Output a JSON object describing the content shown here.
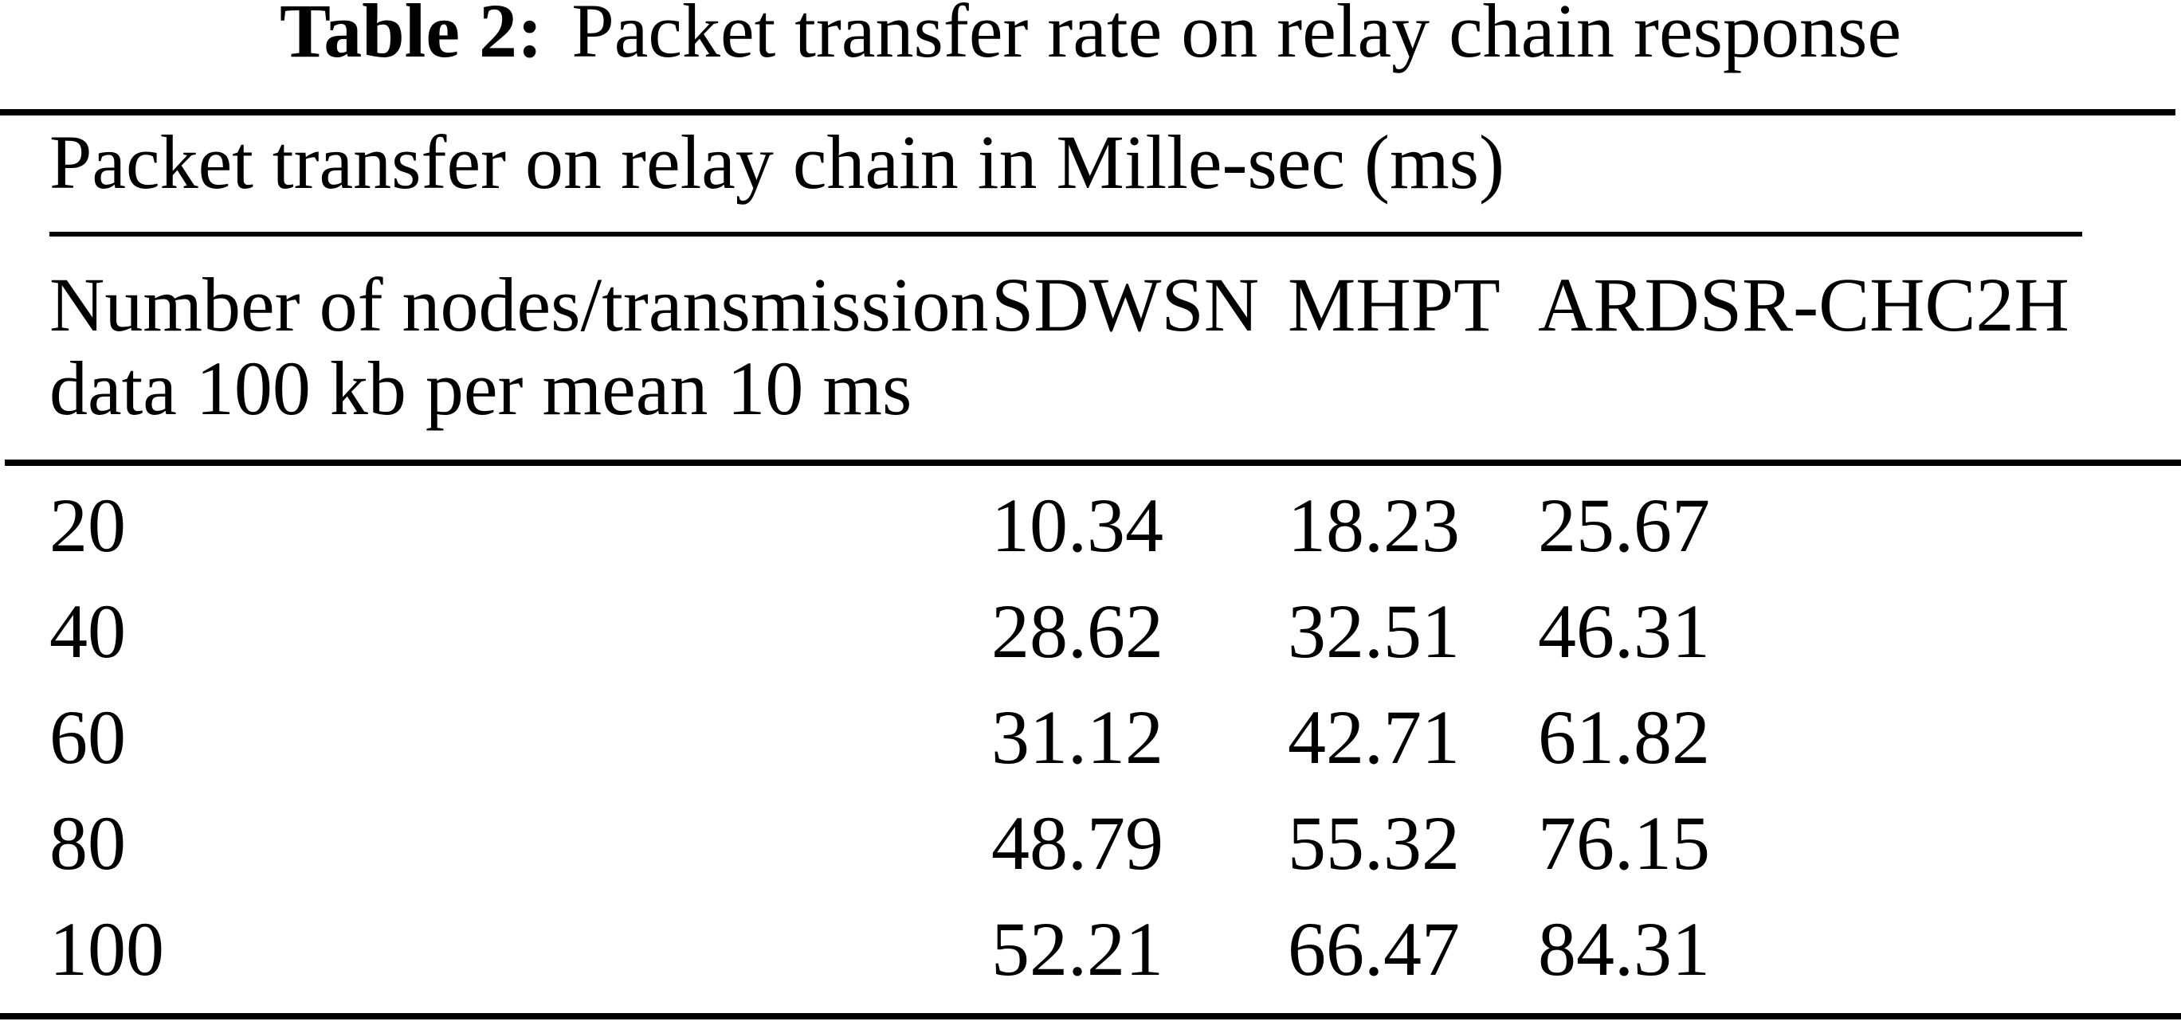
{
  "caption": {
    "number": "Table 2:",
    "text": "Packet transfer rate on relay chain response"
  },
  "table": {
    "subtitle": "Packet transfer on relay chain in Mille-sec (ms)",
    "columns": {
      "nodes_line1": "Number of nodes/transmission",
      "nodes_line2": "data 100 kb per mean 10 ms",
      "sdwsn": "SDWSN",
      "mhpt": "MHPT",
      "ardsr": "ARDSR-CHC2H"
    },
    "rows": [
      {
        "nodes": "20",
        "sdwsn": "10.34",
        "mhpt": "18.23",
        "ardsr": "25.67"
      },
      {
        "nodes": "40",
        "sdwsn": "28.62",
        "mhpt": "32.51",
        "ardsr": "46.31"
      },
      {
        "nodes": "60",
        "sdwsn": "31.12",
        "mhpt": "42.71",
        "ardsr": "61.82"
      },
      {
        "nodes": "80",
        "sdwsn": "48.79",
        "mhpt": "55.32",
        "ardsr": "76.15"
      },
      {
        "nodes": "100",
        "sdwsn": "52.21",
        "mhpt": "66.47",
        "ardsr": "84.31"
      }
    ]
  },
  "colors": {
    "text": "#000000",
    "background": "#ffffff",
    "rule": "#000000"
  }
}
